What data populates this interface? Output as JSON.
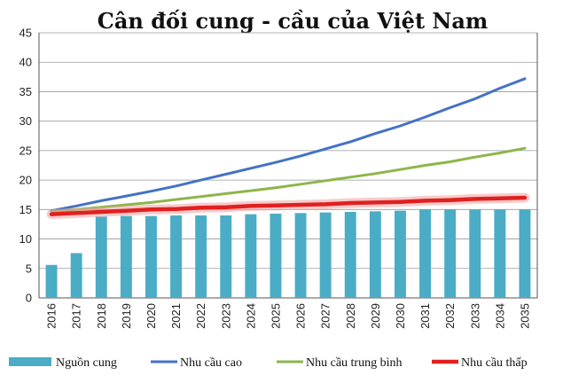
{
  "chart_data": {
    "type": "bar",
    "title": "Cân đối cung - cầu của Việt Nam",
    "xlabel": "",
    "ylabel": "",
    "ylim": [
      0,
      45
    ],
    "yticks": [
      "0",
      "5",
      "10",
      "15",
      "20",
      "25",
      "30",
      "35",
      "40",
      "45"
    ],
    "grid": true,
    "legend_position": "bottom",
    "categories": [
      "2016",
      "2017",
      "2018",
      "2019",
      "2020",
      "2021",
      "2022",
      "2023",
      "2024",
      "2025",
      "2026",
      "2027",
      "2028",
      "2029",
      "2030",
      "2031",
      "2032",
      "2033",
      "2034",
      "2035"
    ],
    "series": [
      {
        "name": "Nguồn cung",
        "type": "bar",
        "color": "#4bacc6",
        "values": [
          5.6,
          7.6,
          13.8,
          13.9,
          13.9,
          14.0,
          14.0,
          14.0,
          14.2,
          14.3,
          14.4,
          14.5,
          14.6,
          14.7,
          14.8,
          15.0,
          15.0,
          15.0,
          15.0,
          15.0
        ]
      },
      {
        "name": "Nhu cầu cao",
        "type": "line",
        "color": "#4472c4",
        "values": [
          14.8,
          15.6,
          16.5,
          17.3,
          18.1,
          19.0,
          20.0,
          21.0,
          22.0,
          23.0,
          24.1,
          25.3,
          26.5,
          27.9,
          29.2,
          30.7,
          32.3,
          33.8,
          35.6,
          37.2
        ]
      },
      {
        "name": "Nhu cầu trung bình",
        "type": "line",
        "color": "#8db64a",
        "values": [
          14.6,
          15.0,
          15.4,
          15.8,
          16.2,
          16.7,
          17.2,
          17.7,
          18.2,
          18.7,
          19.3,
          19.9,
          20.5,
          21.1,
          21.8,
          22.5,
          23.1,
          23.9,
          24.6,
          25.4
        ]
      },
      {
        "name": "Nhu cầu thấp",
        "type": "line",
        "color": "#e02020",
        "values": [
          14.2,
          14.4,
          14.6,
          14.8,
          15.0,
          15.1,
          15.3,
          15.4,
          15.6,
          15.7,
          15.8,
          15.9,
          16.1,
          16.2,
          16.3,
          16.5,
          16.6,
          16.8,
          16.9,
          17.0
        ]
      }
    ]
  }
}
